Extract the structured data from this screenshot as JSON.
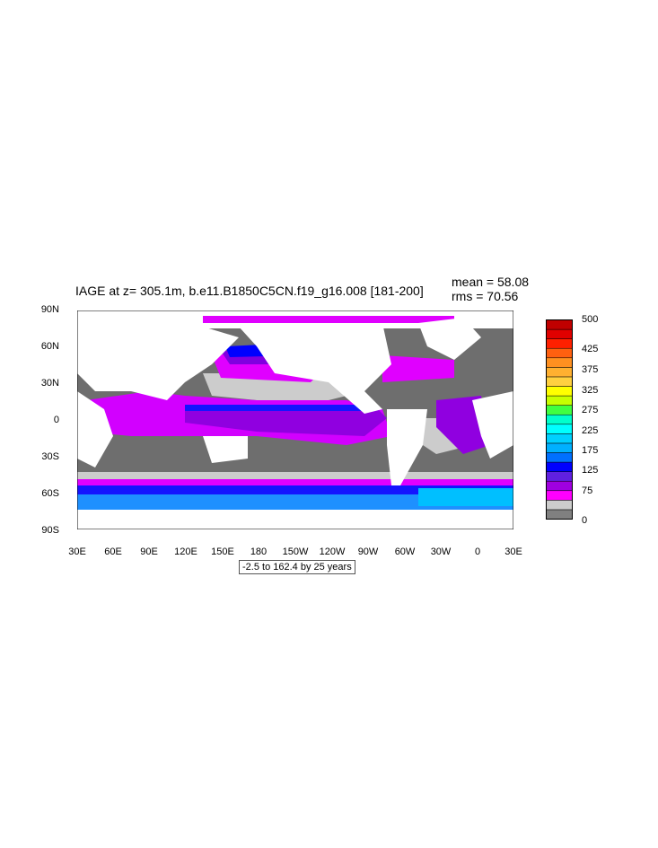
{
  "title": "IAGE at z= 305.1m, b.e11.B1850C5CN.f19_g16.008 [181-200]",
  "stats": {
    "mean": "mean = 58.08",
    "rms": "rms = 70.56"
  },
  "info_box": "-2.5 to 162.4 by 25 years",
  "lat_labels": [
    "90N",
    "60N",
    "30N",
    "0",
    "30S",
    "60S",
    "90S"
  ],
  "lon_labels": [
    "30E",
    "60E",
    "90E",
    "120E",
    "150E",
    "180",
    "150W",
    "120W",
    "90W",
    "60W",
    "30W",
    "0",
    "30E"
  ],
  "colorbar": {
    "labels": [
      "500",
      "425",
      "375",
      "325",
      "275",
      "225",
      "175",
      "125",
      "75",
      "0"
    ],
    "colors": [
      "#808080",
      "#cccccc",
      "#ff00ff",
      "#a000e0",
      "#6020e0",
      "#0000ff",
      "#0070ff",
      "#00b0ff",
      "#00d0ff",
      "#00ffff",
      "#00ffcc",
      "#40ff40",
      "#c8ff00",
      "#ffff00",
      "#ffd040",
      "#ffb030",
      "#ff9020",
      "#ff6010",
      "#ff2000",
      "#e00000",
      "#c00000"
    ]
  }
}
